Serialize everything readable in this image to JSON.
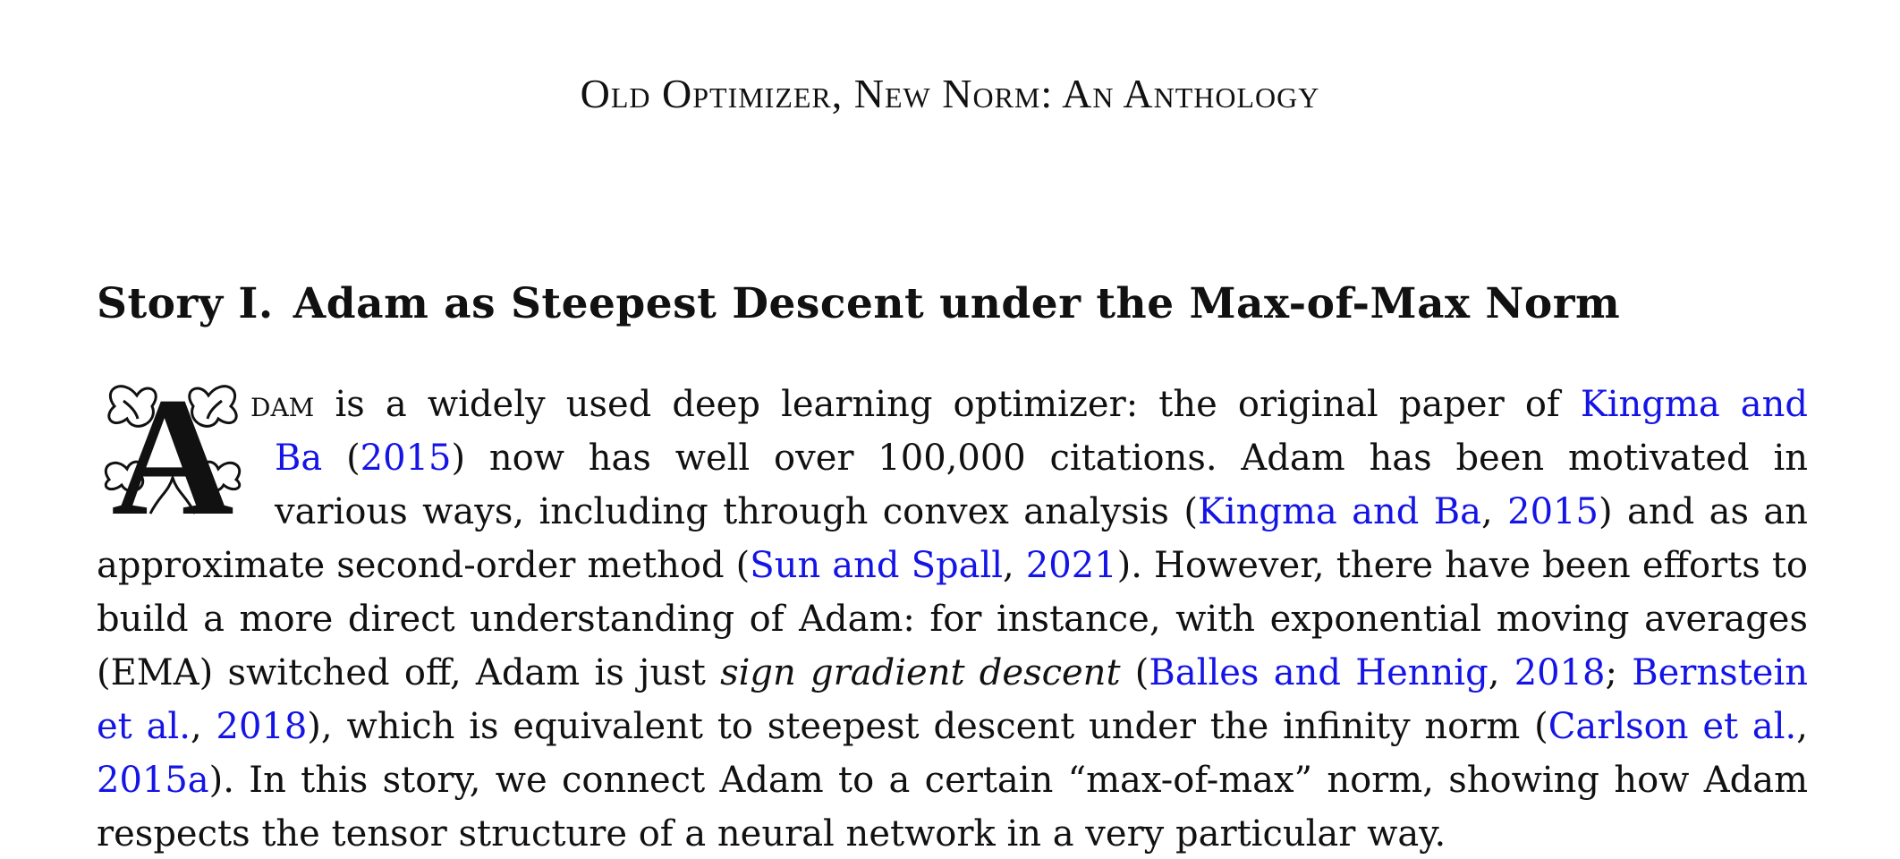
{
  "header": {
    "running_title": "Old Optimizer, New Norm: An Anthology"
  },
  "section": {
    "number": "Story I.",
    "title": "Adam as Steepest Descent under the Max-of-Max Norm"
  },
  "paragraph": {
    "dropcap_letter": "A",
    "dropcap_tail": "dam",
    "l1_text": "is a widely used deep learning optimizer: the original paper of",
    "l1_cite": "Kingma and",
    "l2_cite_a": "Ba",
    "l2_open": "(",
    "l2_cite_b": "2015",
    "l2_text": ") now has well over 100,000 citations.  Adam has been motivated in",
    "l3_text": "various ways, including through convex analysis (",
    "l3_cite_a": "Kingma and Ba",
    "l3_sep": ", ",
    "l3_cite_b": "2015",
    "l3_tail": ") and as an",
    "l4_text": "approximate second-order method (",
    "l4_cite_a": "Sun and Spall",
    "l4_sep": ", ",
    "l4_cite_b": "2021",
    "l4_tail": "). However, there have been efforts to",
    "l5_text": "build a more direct understanding of Adam: for instance, with exponential moving averages",
    "l6_text": "(EMA) switched off, Adam is just ",
    "l6_em": "sign gradient descent",
    "l6_open": " (",
    "l6_cite_a": "Balles and Hennig",
    "l6_sep": ", ",
    "l6_cite_b": "2018",
    "l6_semi": "; ",
    "l6_cite_c": "Bernstein",
    "l7_cite_a": "et al.",
    "l7_sep": ", ",
    "l7_cite_b": "2018",
    "l7_text": "), which is equivalent to steepest descent under the infinity norm (",
    "l7_cite_c": "Carlson et al.",
    "l7_tail": ",",
    "l8_cite_a": "2015a",
    "l8_text": "). In this story, we connect Adam to a certain “max-of-max” norm, showing how Adam",
    "l9_text": "respects the tensor structure of a neural network in a very particular way."
  },
  "colors": {
    "text": "#111111",
    "citation": "#1414e6",
    "background": "#ffffff"
  }
}
